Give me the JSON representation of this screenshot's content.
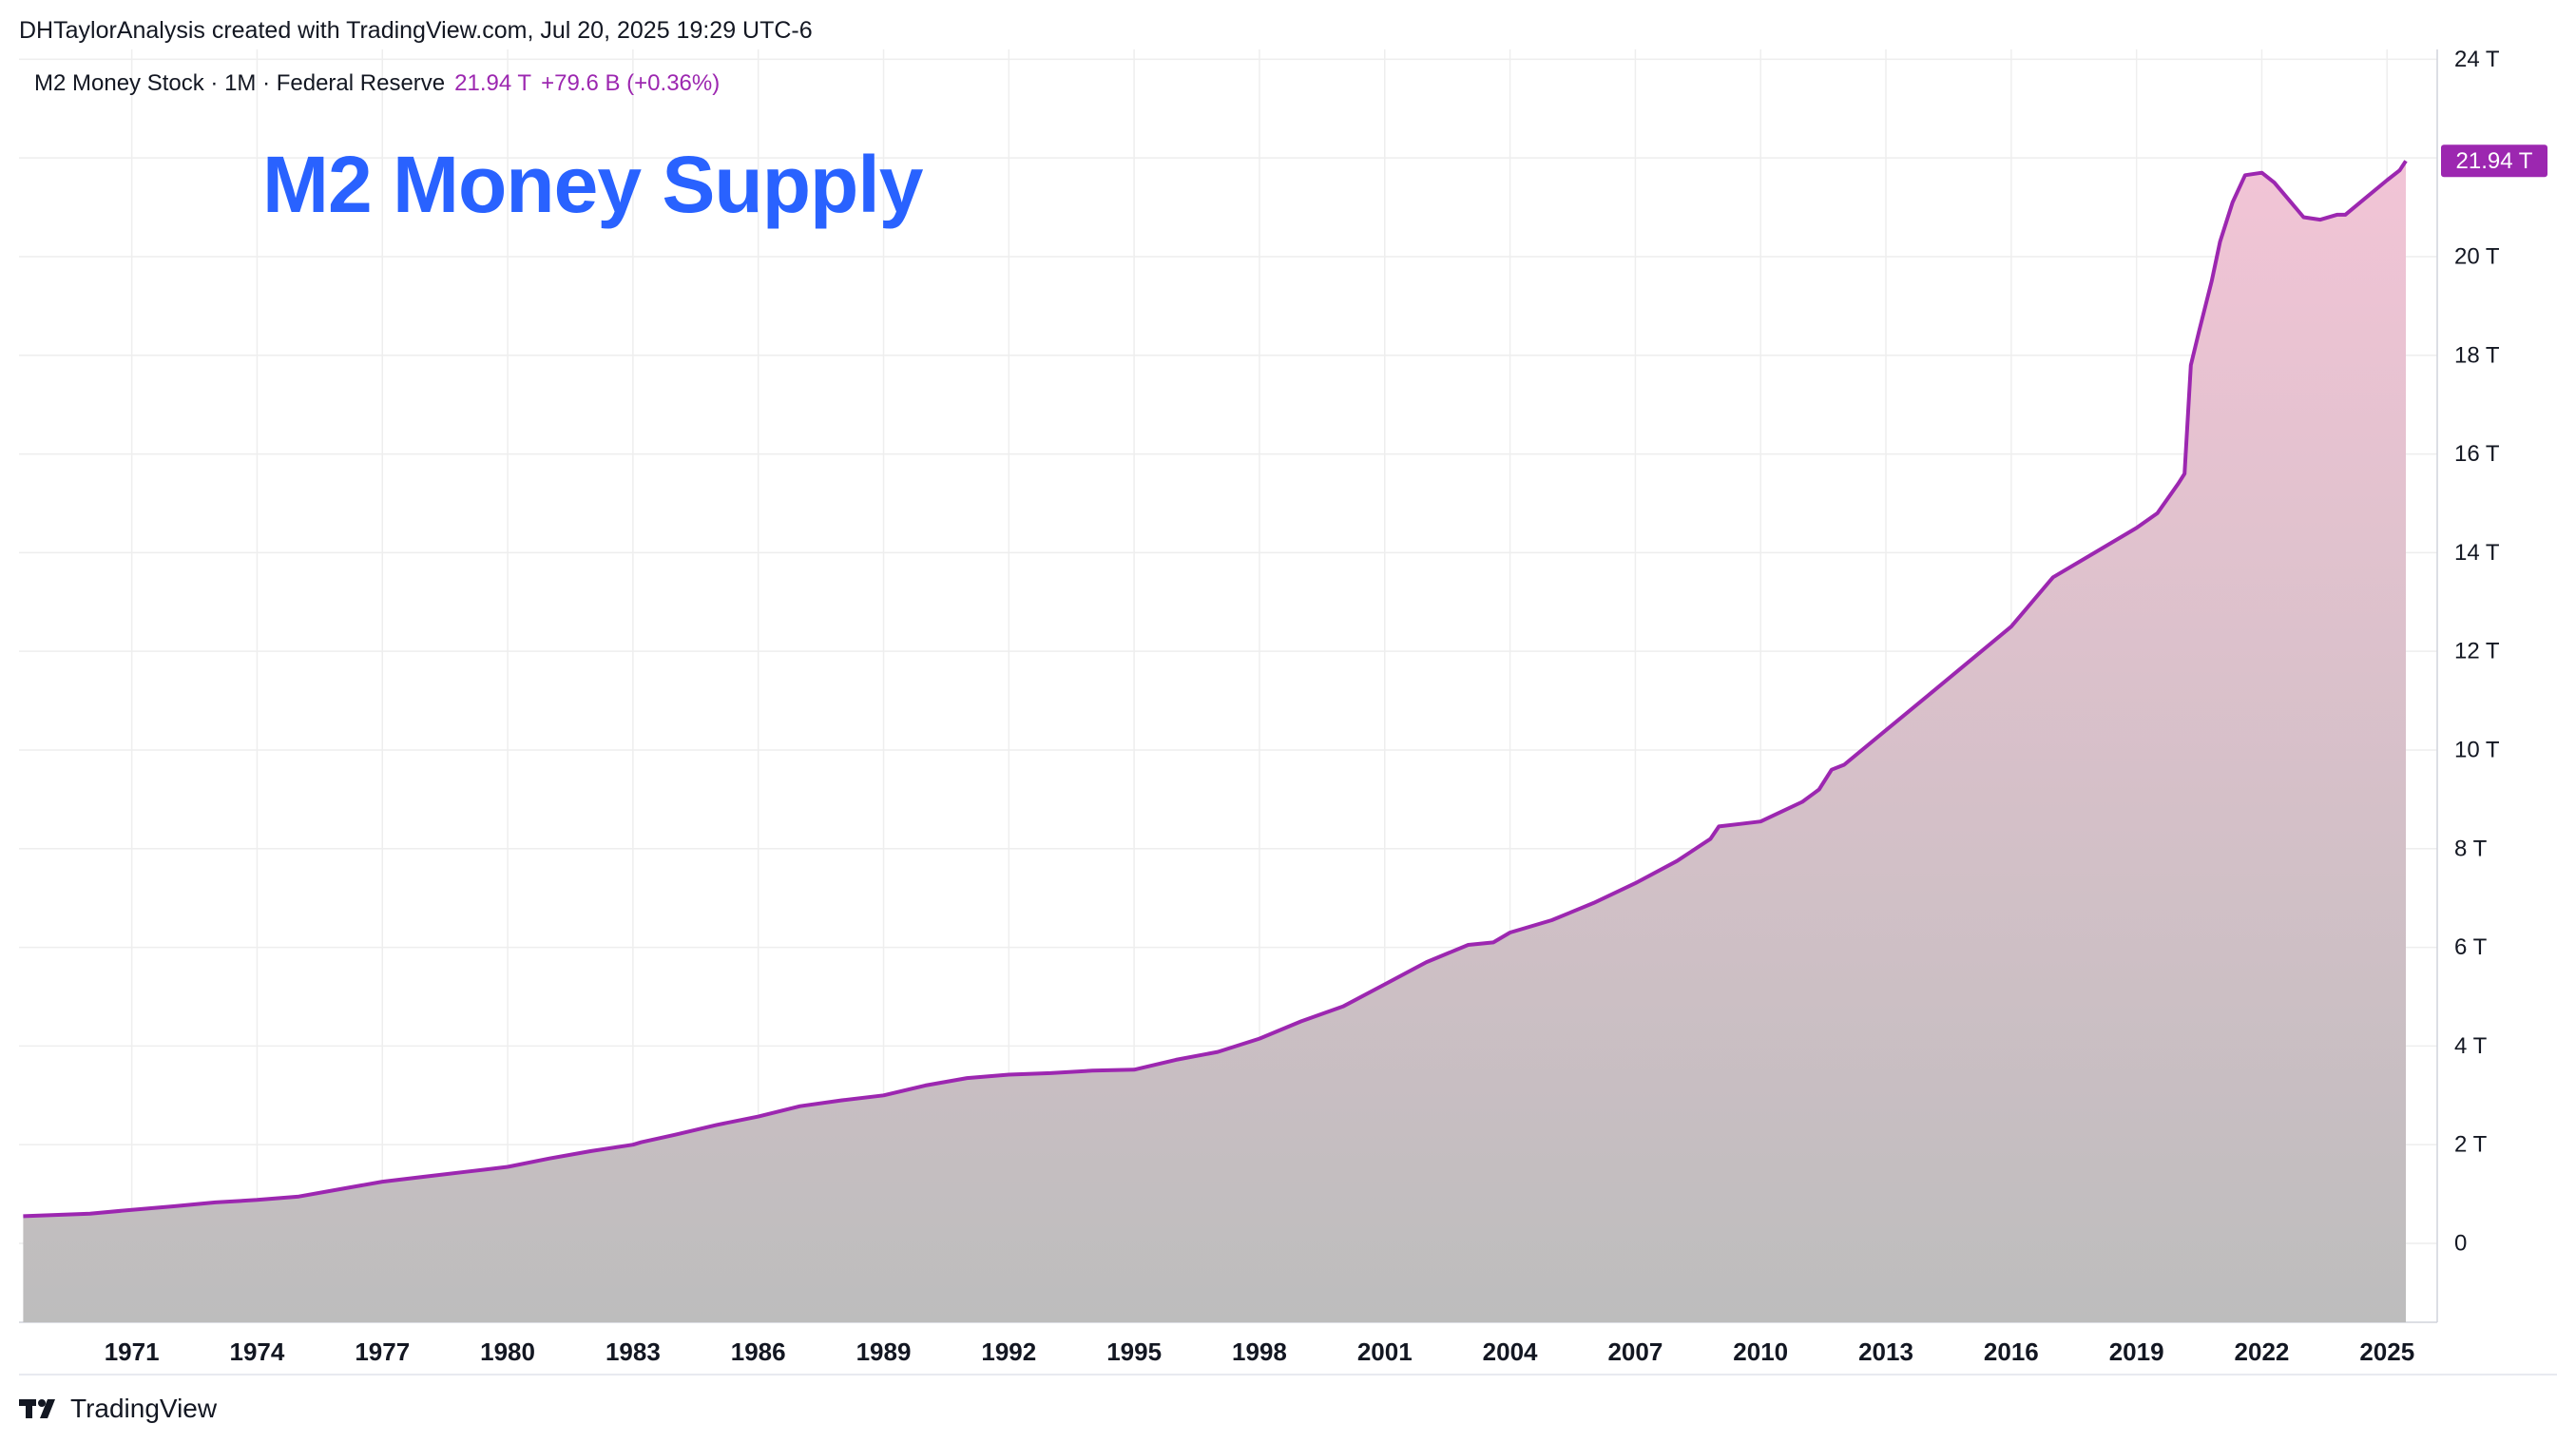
{
  "header": {
    "attribution": "DHTaylorAnalysis created with TradingView.com, Jul 20, 2025 19:29 UTC-6"
  },
  "legend": {
    "symbol": "M2 Money Stock · 1M · Federal Reserve",
    "last": "21.94 T",
    "change": "+79.6 B (+0.36%)"
  },
  "annotation": {
    "title": "M2 Money Supply"
  },
  "footer": {
    "brand": "TradingView",
    "logo_icon": "tradingview-logo-icon"
  },
  "colors": {
    "line": "#9c27b0",
    "fill_top": "#f2c4d6",
    "fill_bottom": "#bdbdbd",
    "title": "#2962ff",
    "badge": "#9c27b0",
    "grid": "#eeeeee"
  },
  "chart_data": {
    "type": "area",
    "title": "M2 Money Supply",
    "ylabel": "",
    "xlabel": "",
    "ylim": [
      -1.6,
      24.2
    ],
    "xlim": [
      1968.3,
      2026.2
    ],
    "y_ticks": [
      0,
      2,
      4,
      6,
      8,
      10,
      12,
      14,
      16,
      18,
      20,
      22,
      24
    ],
    "y_tick_labels": [
      "0",
      "2 T",
      "4 T",
      "6 T",
      "8 T",
      "10 T",
      "12 T",
      "14 T",
      "16 T",
      "18 T",
      "20 T",
      "",
      "24 T"
    ],
    "x_ticks": [
      1971,
      1974,
      1977,
      1980,
      1983,
      1986,
      1989,
      1992,
      1995,
      1998,
      2001,
      2004,
      2007,
      2010,
      2013,
      2016,
      2019,
      2022,
      2025
    ],
    "x_tick_labels": [
      "1971",
      "1974",
      "1977",
      "1980",
      "1983",
      "1986",
      "1989",
      "1992",
      "1995",
      "1998",
      "2001",
      "2004",
      "2007",
      "2010",
      "2013",
      "2016",
      "2019",
      "2022",
      "2025"
    ],
    "last_value_label": "21.94 T",
    "last_value": 21.94,
    "series": [
      {
        "name": "M2 Money Stock",
        "x": [
          1968.4,
          1970,
          1971,
          1972,
          1973,
          1974,
          1975,
          1976,
          1977,
          1978,
          1979,
          1980,
          1981,
          1982,
          1983,
          1983.2,
          1984,
          1985,
          1986,
          1987,
          1988,
          1989,
          1990,
          1991,
          1992,
          1993,
          1994,
          1995,
          1996,
          1997,
          1998,
          1999,
          2000,
          2001,
          2002,
          2003,
          2003.6,
          2004,
          2005,
          2006,
          2007,
          2008,
          2008.8,
          2009,
          2009.5,
          2010,
          2010.5,
          2011,
          2011.4,
          2011.7,
          2012,
          2013,
          2014,
          2015,
          2016,
          2017,
          2018,
          2019,
          2019.5,
          2020,
          2020.15,
          2020.3,
          2020.5,
          2020.8,
          2021,
          2021.3,
          2021.6,
          2022,
          2022.3,
          2022.6,
          2023,
          2023.4,
          2023.8,
          2024,
          2024.5,
          2025,
          2025.3,
          2025.45
        ],
        "values": [
          0.55,
          0.6,
          0.68,
          0.75,
          0.83,
          0.88,
          0.95,
          1.1,
          1.25,
          1.35,
          1.45,
          1.55,
          1.72,
          1.87,
          2.0,
          2.05,
          2.2,
          2.4,
          2.57,
          2.78,
          2.9,
          3.0,
          3.2,
          3.35,
          3.42,
          3.45,
          3.5,
          3.52,
          3.72,
          3.88,
          4.15,
          4.5,
          4.8,
          5.25,
          5.7,
          6.05,
          6.1,
          6.3,
          6.55,
          6.9,
          7.3,
          7.75,
          8.2,
          8.45,
          8.5,
          8.55,
          8.75,
          8.95,
          9.2,
          9.6,
          9.7,
          10.4,
          11.1,
          11.8,
          12.5,
          13.5,
          14.0,
          14.5,
          14.8,
          15.4,
          15.6,
          17.8,
          18.5,
          19.5,
          20.3,
          21.1,
          21.65,
          21.7,
          21.5,
          21.2,
          20.8,
          20.75,
          20.85,
          20.85,
          21.2,
          21.55,
          21.75,
          21.94
        ]
      }
    ]
  }
}
